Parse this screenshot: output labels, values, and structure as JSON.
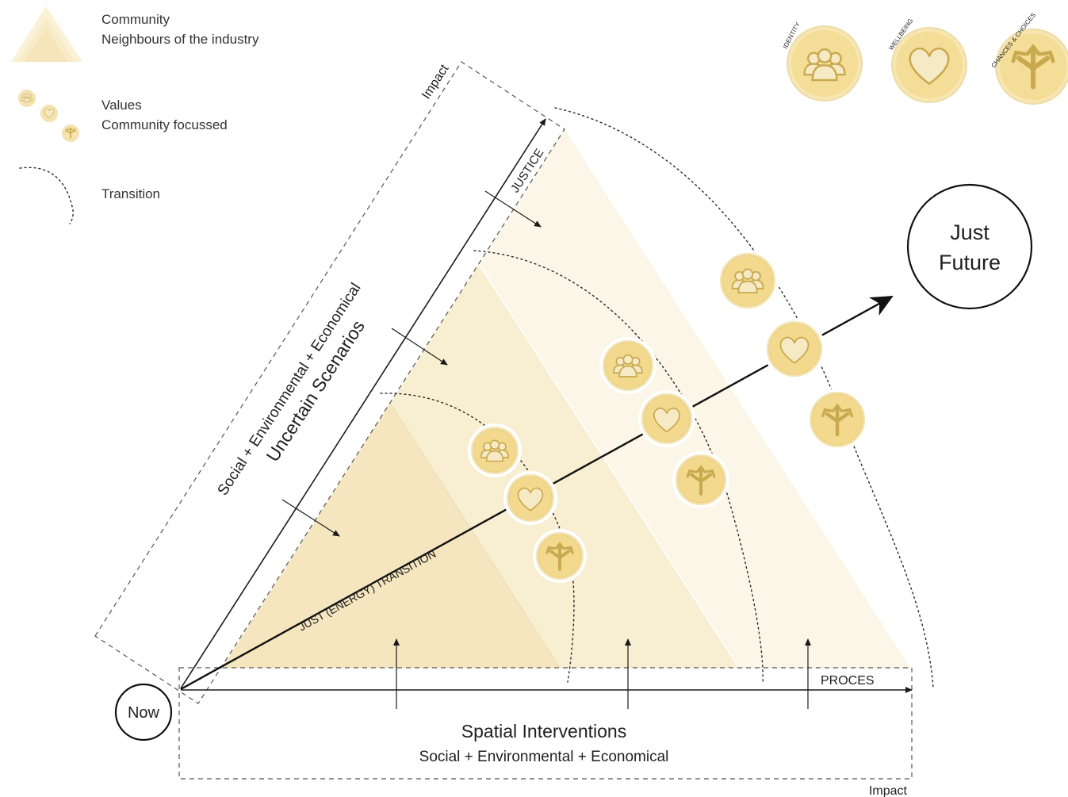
{
  "legend": {
    "community_title": "Community",
    "community_sub": "Neighbours of the industry",
    "values_title": "Values",
    "values_sub": "Community focussed",
    "transition": "Transition"
  },
  "value_badges": {
    "identity": "IDENTITY",
    "wellbeing": "WELLBEING",
    "chances": "CHANCES & CHOICES"
  },
  "labels": {
    "impact_top": "Impact",
    "justice": "JUSTICE",
    "scenarios_line1": "Social + Environmental + Economical",
    "scenarios_line2": "Uncertain Scenarios",
    "just_energy_transition": "JUST (ENERGY) TRANSITION",
    "now": "Now",
    "just_future_line1": "Just",
    "just_future_line2": "Future",
    "proces": "PROCES",
    "spatial_title": "Spatial Interventions",
    "spatial_sub": "Social + Environmental + Economical",
    "impact_bottom": "Impact"
  },
  "colors": {
    "triangle_light": "#fbf5e4",
    "triangle_mid": "#f8edcf",
    "triangle_dark": "#f5e5bd",
    "coin": "#f2d98d",
    "glyph_stroke": "#c9a94f"
  },
  "icons": [
    "community-icon",
    "heart-icon",
    "fork-arrows-icon"
  ]
}
